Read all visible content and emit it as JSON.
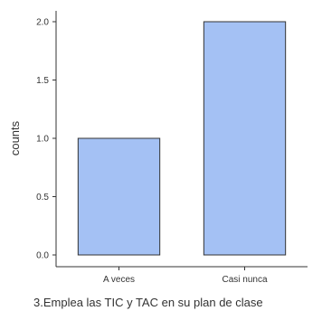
{
  "chart_data": {
    "type": "bar",
    "categories": [
      "A veces",
      "Casi nunca"
    ],
    "values": [
      1,
      2
    ],
    "xlabel": "3.Emplea las TIC y TAC en su plan de clase",
    "ylabel": "counts",
    "ylim": [
      0,
      2
    ],
    "yticks": [
      "0.0",
      "0.5",
      "1.0",
      "1.5",
      "2.0"
    ],
    "bar_color": "#a4c1f4",
    "bar_border_color": "#333333",
    "grid": false
  }
}
